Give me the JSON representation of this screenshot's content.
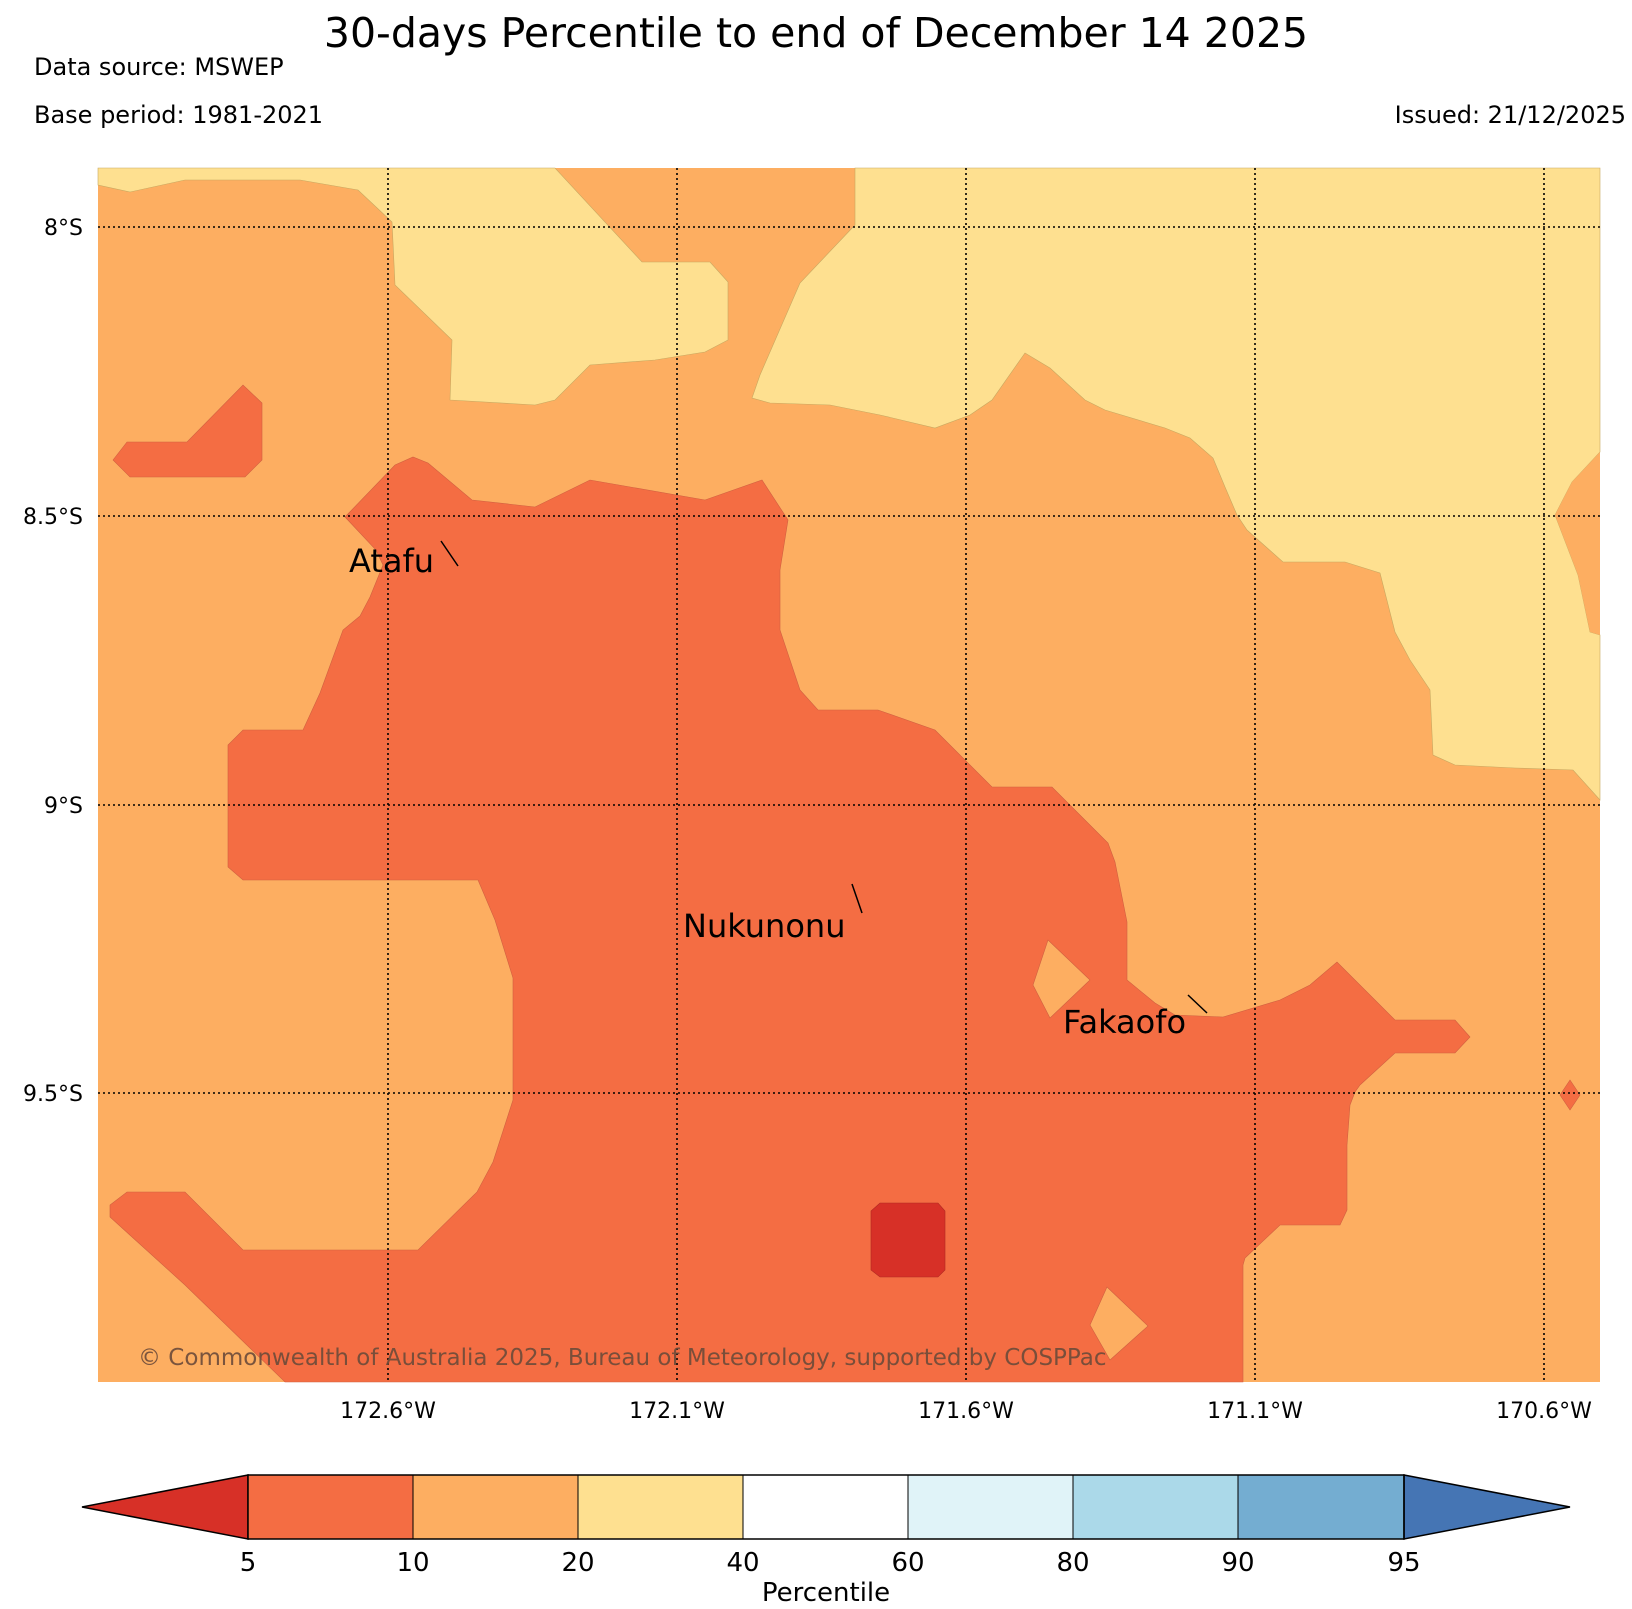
{
  "header": {
    "title": "30-days Percentile to end of December 14 2025",
    "data_source": "Data source: MSWEP",
    "base_period": "Base period: 1981-2021",
    "issued": "Issued: 21/12/2025"
  },
  "map": {
    "lat_labels": [
      "8°S",
      "8.5°S",
      "9°S",
      "9.5°S"
    ],
    "lon_labels": [
      "172.6°W",
      "172.1°W",
      "171.6°W",
      "171.1°W",
      "170.6°W"
    ],
    "places": [
      {
        "name": "Atafu"
      },
      {
        "name": "Nukunonu"
      },
      {
        "name": "Fakaofo"
      }
    ],
    "copyright": "© Commonwealth of Australia 2025, Bureau of Meteorology, supported by COSPPac",
    "colors": {
      "below_5": "#d73027",
      "p5_10": "#f46d43",
      "p10_20": "#fdae61",
      "p20_40": "#fee090"
    }
  },
  "legend": {
    "label": "Percentile",
    "ticks": [
      "5",
      "10",
      "20",
      "40",
      "60",
      "80",
      "90",
      "95"
    ],
    "colors": {
      "under": "#d73027",
      "bins": [
        "#f46d43",
        "#fdae61",
        "#fee090",
        "#ffffff",
        "#e0f3f8",
        "#abd9e9",
        "#74add1"
      ],
      "over": "#4575b4"
    }
  }
}
